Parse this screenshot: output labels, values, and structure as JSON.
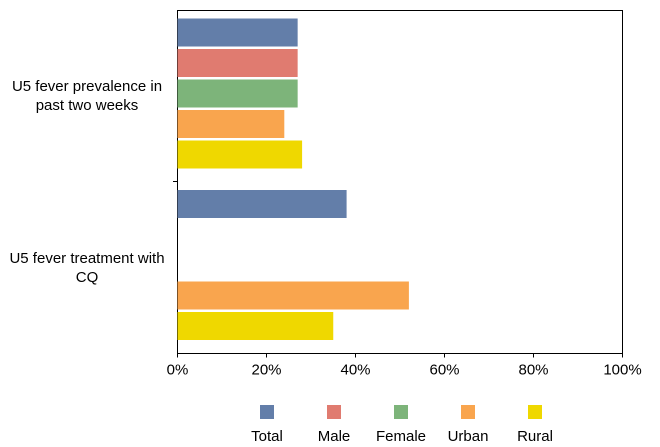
{
  "chart_data": {
    "type": "bar",
    "orientation": "horizontal",
    "categories": [
      "U5 fever prevalence in past two weeks",
      "U5 fever treatment with CQ"
    ],
    "series": [
      {
        "name": "Total",
        "color": "#637ea9",
        "values": [
          27,
          38
        ]
      },
      {
        "name": "Male",
        "color": "#e07b70",
        "values": [
          27,
          null
        ]
      },
      {
        "name": "Female",
        "color": "#7db47a",
        "values": [
          27,
          null
        ]
      },
      {
        "name": "Urban",
        "color": "#f9a54e",
        "values": [
          24,
          52
        ]
      },
      {
        "name": "Rural",
        "color": "#efd800",
        "values": [
          28,
          35
        ]
      }
    ],
    "xlim": [
      0,
      100
    ],
    "xticks": [
      {
        "value": 0,
        "label": "0%"
      },
      {
        "value": 20,
        "label": "20%"
      },
      {
        "value": 40,
        "label": "40%"
      },
      {
        "value": 60,
        "label": "60%"
      },
      {
        "value": 80,
        "label": "80%"
      },
      {
        "value": 100,
        "label": "100%"
      }
    ],
    "grid": false,
    "legend": "bottom"
  }
}
